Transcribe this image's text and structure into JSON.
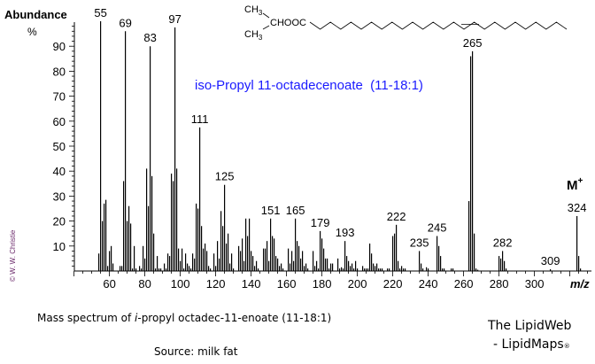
{
  "chart_data": {
    "type": "bar",
    "title": "iso-Propyl 11-octadecenoate  (11-18:1)",
    "ylabel": "Abundance",
    "ylabel_unit": "%",
    "xlabel": "m/z",
    "ylim": [
      0,
      100
    ],
    "xlim": [
      38,
      330
    ],
    "yticks": [
      10,
      20,
      30,
      40,
      50,
      60,
      70,
      80,
      90
    ],
    "xticks": [
      60,
      80,
      100,
      120,
      140,
      160,
      180,
      200,
      220,
      240,
      260,
      280,
      300
    ],
    "grid": false,
    "molecular_ion_label": "M",
    "molecular_ion_sup": "+",
    "peaks": [
      [
        54,
        7
      ],
      [
        55,
        100
      ],
      [
        56,
        20
      ],
      [
        57,
        27
      ],
      [
        58,
        28.5
      ],
      [
        59,
        2
      ],
      [
        60,
        8
      ],
      [
        61,
        10
      ],
      [
        62,
        3
      ],
      [
        66,
        2
      ],
      [
        67,
        2
      ],
      [
        68,
        36
      ],
      [
        69,
        96
      ],
      [
        70,
        20
      ],
      [
        71,
        26
      ],
      [
        72,
        19
      ],
      [
        73,
        1
      ],
      [
        74,
        10
      ],
      [
        75,
        1
      ],
      [
        77,
        2
      ],
      [
        78,
        1
      ],
      [
        79,
        10
      ],
      [
        80,
        5
      ],
      [
        81,
        41
      ],
      [
        82,
        26
      ],
      [
        83,
        90
      ],
      [
        84,
        38
      ],
      [
        85,
        15
      ],
      [
        86,
        1
      ],
      [
        87,
        6
      ],
      [
        88,
        1
      ],
      [
        89,
        1
      ],
      [
        91,
        3
      ],
      [
        92,
        1
      ],
      [
        93,
        7
      ],
      [
        94,
        6
      ],
      [
        95,
        39
      ],
      [
        96,
        36
      ],
      [
        97,
        97.5
      ],
      [
        98,
        41
      ],
      [
        99,
        9
      ],
      [
        100,
        4
      ],
      [
        101,
        9
      ],
      [
        102,
        1
      ],
      [
        103,
        7
      ],
      [
        104,
        3
      ],
      [
        105,
        2
      ],
      [
        106,
        1
      ],
      [
        107,
        7
      ],
      [
        108,
        5
      ],
      [
        109,
        27
      ],
      [
        110,
        25
      ],
      [
        111,
        57.5
      ],
      [
        112,
        18
      ],
      [
        113,
        9
      ],
      [
        114,
        11
      ],
      [
        115,
        8
      ],
      [
        116,
        2
      ],
      [
        117,
        1
      ],
      [
        119,
        7
      ],
      [
        120,
        2
      ],
      [
        121,
        12
      ],
      [
        122,
        5
      ],
      [
        123,
        24
      ],
      [
        124,
        18
      ],
      [
        125,
        34.5
      ],
      [
        126,
        11
      ],
      [
        127,
        15
      ],
      [
        128,
        3
      ],
      [
        129,
        7
      ],
      [
        130,
        1
      ],
      [
        133,
        10
      ],
      [
        134,
        8
      ],
      [
        135,
        13
      ],
      [
        136,
        4
      ],
      [
        137,
        21
      ],
      [
        138,
        14
      ],
      [
        139,
        21
      ],
      [
        140,
        8
      ],
      [
        141,
        6
      ],
      [
        142,
        2
      ],
      [
        143,
        4
      ],
      [
        144,
        1
      ],
      [
        147,
        9
      ],
      [
        148,
        9
      ],
      [
        149,
        12
      ],
      [
        150,
        4
      ],
      [
        151,
        21
      ],
      [
        152,
        14
      ],
      [
        153,
        13
      ],
      [
        154,
        6
      ],
      [
        155,
        5
      ],
      [
        156,
        2
      ],
      [
        157,
        3
      ],
      [
        158,
        1
      ],
      [
        161,
        9
      ],
      [
        162,
        3
      ],
      [
        163,
        8
      ],
      [
        164,
        4
      ],
      [
        165,
        21
      ],
      [
        166,
        12
      ],
      [
        167,
        10
      ],
      [
        168,
        5
      ],
      [
        169,
        8
      ],
      [
        170,
        2
      ],
      [
        171,
        3
      ],
      [
        172,
        1
      ],
      [
        175,
        8
      ],
      [
        176,
        2
      ],
      [
        177,
        4
      ],
      [
        178,
        1
      ],
      [
        179,
        16
      ],
      [
        180,
        13
      ],
      [
        181,
        9
      ],
      [
        182,
        5
      ],
      [
        183,
        5
      ],
      [
        184,
        1
      ],
      [
        185,
        3
      ],
      [
        186,
        3
      ],
      [
        189,
        5
      ],
      [
        190,
        1
      ],
      [
        191,
        1.5
      ],
      [
        192,
        1
      ],
      [
        193,
        12
      ],
      [
        194,
        6
      ],
      [
        195,
        4
      ],
      [
        196,
        2
      ],
      [
        197,
        3
      ],
      [
        198,
        1
      ],
      [
        199,
        4
      ],
      [
        200,
        1
      ],
      [
        203,
        2
      ],
      [
        204,
        1
      ],
      [
        205,
        1
      ],
      [
        206,
        1
      ],
      [
        207,
        11
      ],
      [
        208,
        7
      ],
      [
        209,
        3
      ],
      [
        210,
        2
      ],
      [
        211,
        3
      ],
      [
        212,
        1
      ],
      [
        213,
        1
      ],
      [
        214,
        1
      ],
      [
        217,
        1
      ],
      [
        218,
        1
      ],
      [
        220,
        14
      ],
      [
        221,
        15
      ],
      [
        222,
        18.5
      ],
      [
        223,
        4
      ],
      [
        224,
        1
      ],
      [
        225,
        2
      ],
      [
        226,
        1
      ],
      [
        227,
        1
      ],
      [
        235,
        8
      ],
      [
        236,
        3
      ],
      [
        237,
        1
      ],
      [
        239,
        1.5
      ],
      [
        240,
        1
      ],
      [
        245,
        14
      ],
      [
        246,
        10
      ],
      [
        247,
        6
      ],
      [
        248,
        1
      ],
      [
        249,
        1
      ],
      [
        253,
        1
      ],
      [
        254,
        1
      ],
      [
        263,
        28
      ],
      [
        264,
        86
      ],
      [
        265,
        88
      ],
      [
        266,
        15
      ],
      [
        267,
        1
      ],
      [
        268,
        0.5
      ],
      [
        280,
        6
      ],
      [
        281,
        5
      ],
      [
        282,
        8
      ],
      [
        283,
        4
      ],
      [
        284,
        1
      ],
      [
        309,
        0.7
      ],
      [
        324,
        22
      ],
      [
        325,
        6
      ],
      [
        326,
        1
      ]
    ],
    "peak_labels": [
      "55",
      "69",
      "83",
      "97",
      "111",
      "125",
      "151",
      "165",
      "179",
      "193",
      "222",
      "235",
      "245",
      "265",
      "282",
      "309",
      "324"
    ]
  },
  "structure": {
    "ch3_top": "CH",
    "ch3_bottom": "CH",
    "subscript": "3",
    "ester": "CHOOC"
  },
  "copyright": "© W. W. Christie",
  "caption": {
    "prefix": "Mass spectrum of ",
    "italic": "i",
    "suffix": "-propyl octadec-11-enoate (11-18:1)"
  },
  "source": "Source: milk fat",
  "brand": {
    "line1": "The LipidWeb",
    "line2": "- LipidMaps",
    "mark": "®"
  },
  "colors": {
    "title": "#1a1aff",
    "peaks": "#000000",
    "copyright": "#6b2a6b"
  }
}
